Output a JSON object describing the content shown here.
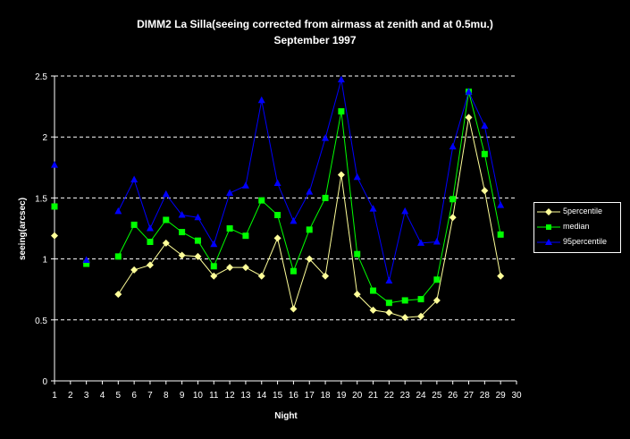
{
  "chart_data": {
    "type": "line",
    "title": "DIMM2 La Silla(seeing corrected from airmass at zenith and at 0.5mu.)",
    "subtitle": "September 1997",
    "xlabel": "Night",
    "ylabel": "seeing(arcsec)",
    "x": [
      1,
      2,
      3,
      4,
      5,
      6,
      7,
      8,
      9,
      10,
      11,
      12,
      13,
      14,
      15,
      16,
      17,
      18,
      19,
      20,
      21,
      22,
      23,
      24,
      25,
      26,
      27,
      28,
      29,
      30
    ],
    "xlim": [
      1,
      30
    ],
    "ylim": [
      0,
      2.5
    ],
    "yticks": [
      "0",
      "0.5",
      "1",
      "1.5",
      "2",
      "2.5"
    ],
    "grid": true,
    "legend_position": "right",
    "series": [
      {
        "name": "5percentile",
        "color": "#ffff99",
        "marker": "diamond",
        "values": [
          1.19,
          null,
          0.97,
          null,
          0.71,
          0.91,
          0.95,
          1.13,
          1.03,
          1.02,
          0.86,
          0.93,
          0.93,
          0.86,
          1.17,
          0.59,
          1.0,
          0.86,
          1.69,
          0.71,
          0.58,
          0.56,
          0.52,
          0.53,
          0.66,
          1.34,
          2.16,
          1.56,
          0.86,
          null
        ]
      },
      {
        "name": "median",
        "color": "#00ff00",
        "marker": "square",
        "values": [
          1.43,
          null,
          0.96,
          null,
          1.02,
          1.28,
          1.14,
          1.32,
          1.22,
          1.15,
          0.94,
          1.25,
          1.19,
          1.48,
          1.36,
          0.9,
          1.24,
          1.5,
          2.21,
          1.04,
          0.74,
          0.64,
          0.66,
          0.67,
          0.83,
          1.49,
          2.37,
          1.86,
          1.2,
          null
        ]
      },
      {
        "name": "95percentile",
        "color": "#0000ff",
        "marker": "triangle",
        "values": [
          1.77,
          null,
          0.99,
          null,
          1.39,
          1.65,
          1.25,
          1.53,
          1.36,
          1.34,
          1.12,
          1.54,
          1.6,
          2.3,
          1.62,
          1.31,
          1.55,
          1.99,
          2.47,
          1.67,
          1.41,
          0.82,
          1.39,
          1.13,
          1.14,
          1.92,
          2.37,
          2.09,
          1.44,
          null
        ]
      }
    ]
  }
}
